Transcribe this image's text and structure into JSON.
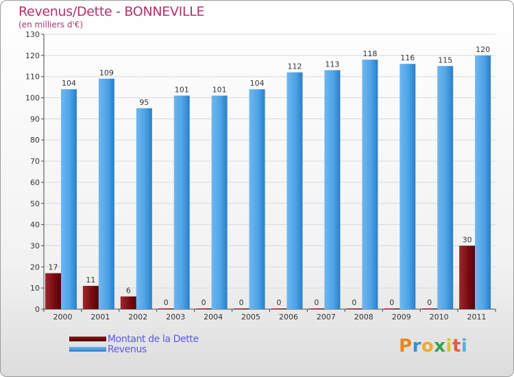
{
  "header": {
    "title": "Revenus/Dette - BONNEVILLE",
    "subtitle": "(en milliers d'€)"
  },
  "chart_data": {
    "type": "bar",
    "title": "Revenus/Dette - BONNEVILLE",
    "subtitle": "(en milliers d'€)",
    "xlabel": "",
    "ylabel": "",
    "ylim": [
      0,
      130
    ],
    "yticks": [
      0,
      10,
      20,
      30,
      40,
      50,
      60,
      70,
      80,
      90,
      100,
      110,
      120,
      130
    ],
    "grid": true,
    "legend_position": "bottom-left",
    "categories": [
      "2000",
      "2001",
      "2002",
      "2003",
      "2004",
      "2005",
      "2006",
      "2007",
      "2008",
      "2009",
      "2010",
      "2011"
    ],
    "series": [
      {
        "name": "Montant de la Dette",
        "color": "#7a0c12",
        "values": [
          17,
          11,
          6,
          0,
          0,
          0,
          0,
          0,
          0,
          0,
          0,
          30
        ]
      },
      {
        "name": "Revenus",
        "color": "#4a9fe2",
        "values": [
          104,
          109,
          95,
          101,
          101,
          104,
          112,
          113,
          118,
          116,
          115,
          120
        ]
      }
    ]
  },
  "legend": {
    "items": [
      {
        "label": "Montant de la Dette",
        "color": "#6b0a0a"
      },
      {
        "label": "Revenus",
        "color": "#3f98df"
      }
    ]
  },
  "logo": {
    "letters": [
      "P",
      "r",
      "o",
      "x",
      "i",
      "t",
      "i"
    ],
    "colors": [
      "#e8871e",
      "#3c8bd5",
      "#f0a92a",
      "#3aa04a",
      "#d8c62a",
      "#e8593a",
      "#4fb3d9"
    ]
  }
}
